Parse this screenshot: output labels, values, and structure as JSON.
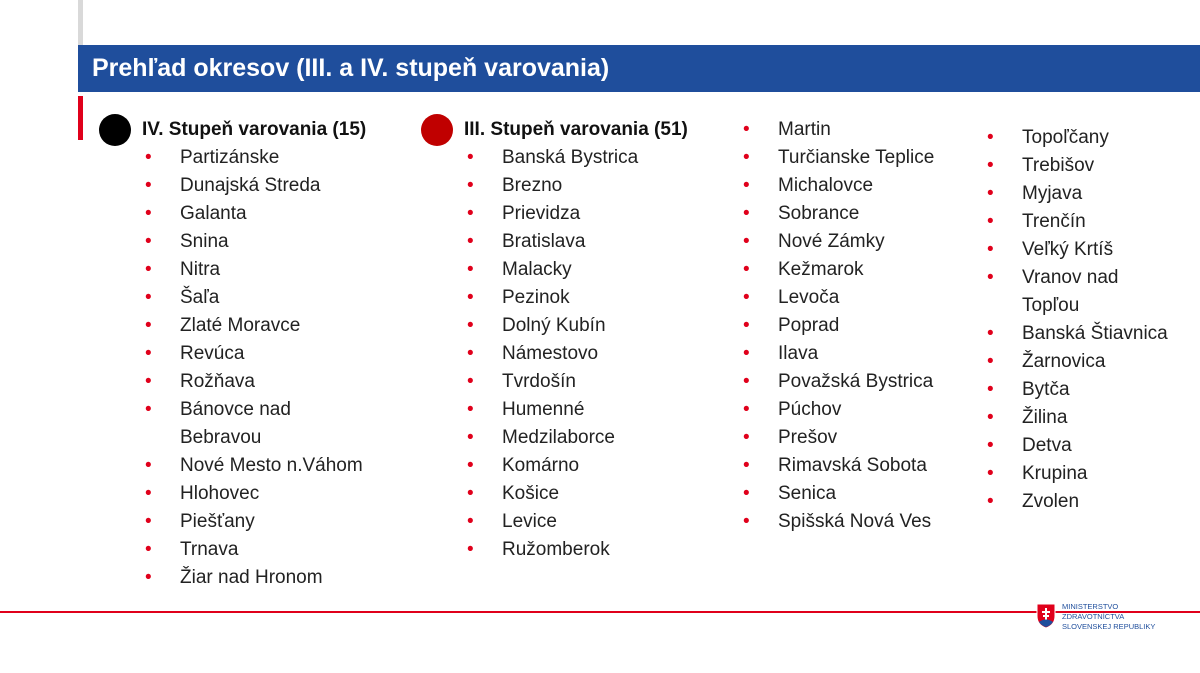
{
  "title": "Prehľad okresov (III. a IV. stupeň varovania)",
  "level4": {
    "heading": "IV. Stupeň varovania (15)",
    "items": [
      "Partizánske",
      "Dunajská Streda",
      "Galanta",
      "Snina",
      "Nitra",
      "Šaľa",
      "Zlaté Moravce",
      "Revúca",
      "Rožňava",
      "Bánovce nad Bebravou",
      "Nové Mesto n.Váhom",
      "Hlohovec",
      "Piešťany",
      "Trnava",
      "Žiar nad Hronom"
    ]
  },
  "level3": {
    "heading": "III. Stupeň varovania (51)",
    "columns": [
      [
        "Banská Bystrica",
        "Brezno",
        "Prievidza",
        "Bratislava",
        "Malacky",
        "Pezinok",
        "Dolný Kubín",
        "Námestovo",
        "Tvrdošín",
        "Humenné",
        "Medzilaborce",
        "Komárno",
        "Košice",
        "Levice",
        "Ružomberok"
      ],
      [
        "Martin",
        "Turčianske Teplice",
        "Michalovce",
        "Sobrance",
        "Nové Zámky",
        "Kežmarok",
        "Levoča",
        "Poprad",
        "Ilava",
        "Považská Bystrica",
        "Púchov",
        "Prešov",
        "Rimavská Sobota",
        "Senica",
        "Spišská Nová Ves"
      ],
      [
        "Topoľčany",
        "Trebišov",
        "Myjava",
        "Trenčín",
        "Veľký Krtíš",
        "Vranov nad Topľou",
        "Banská Štiavnica",
        "Žarnovica",
        "Bytča",
        "Žilina",
        "Detva",
        "Krupina",
        "Zvolen"
      ]
    ]
  },
  "footer": {
    "logo_lines": [
      "MINISTERSTVO",
      "ZDRAVOTNÍCTVA",
      "SLOVENSKEJ REPUBLIKY"
    ]
  }
}
